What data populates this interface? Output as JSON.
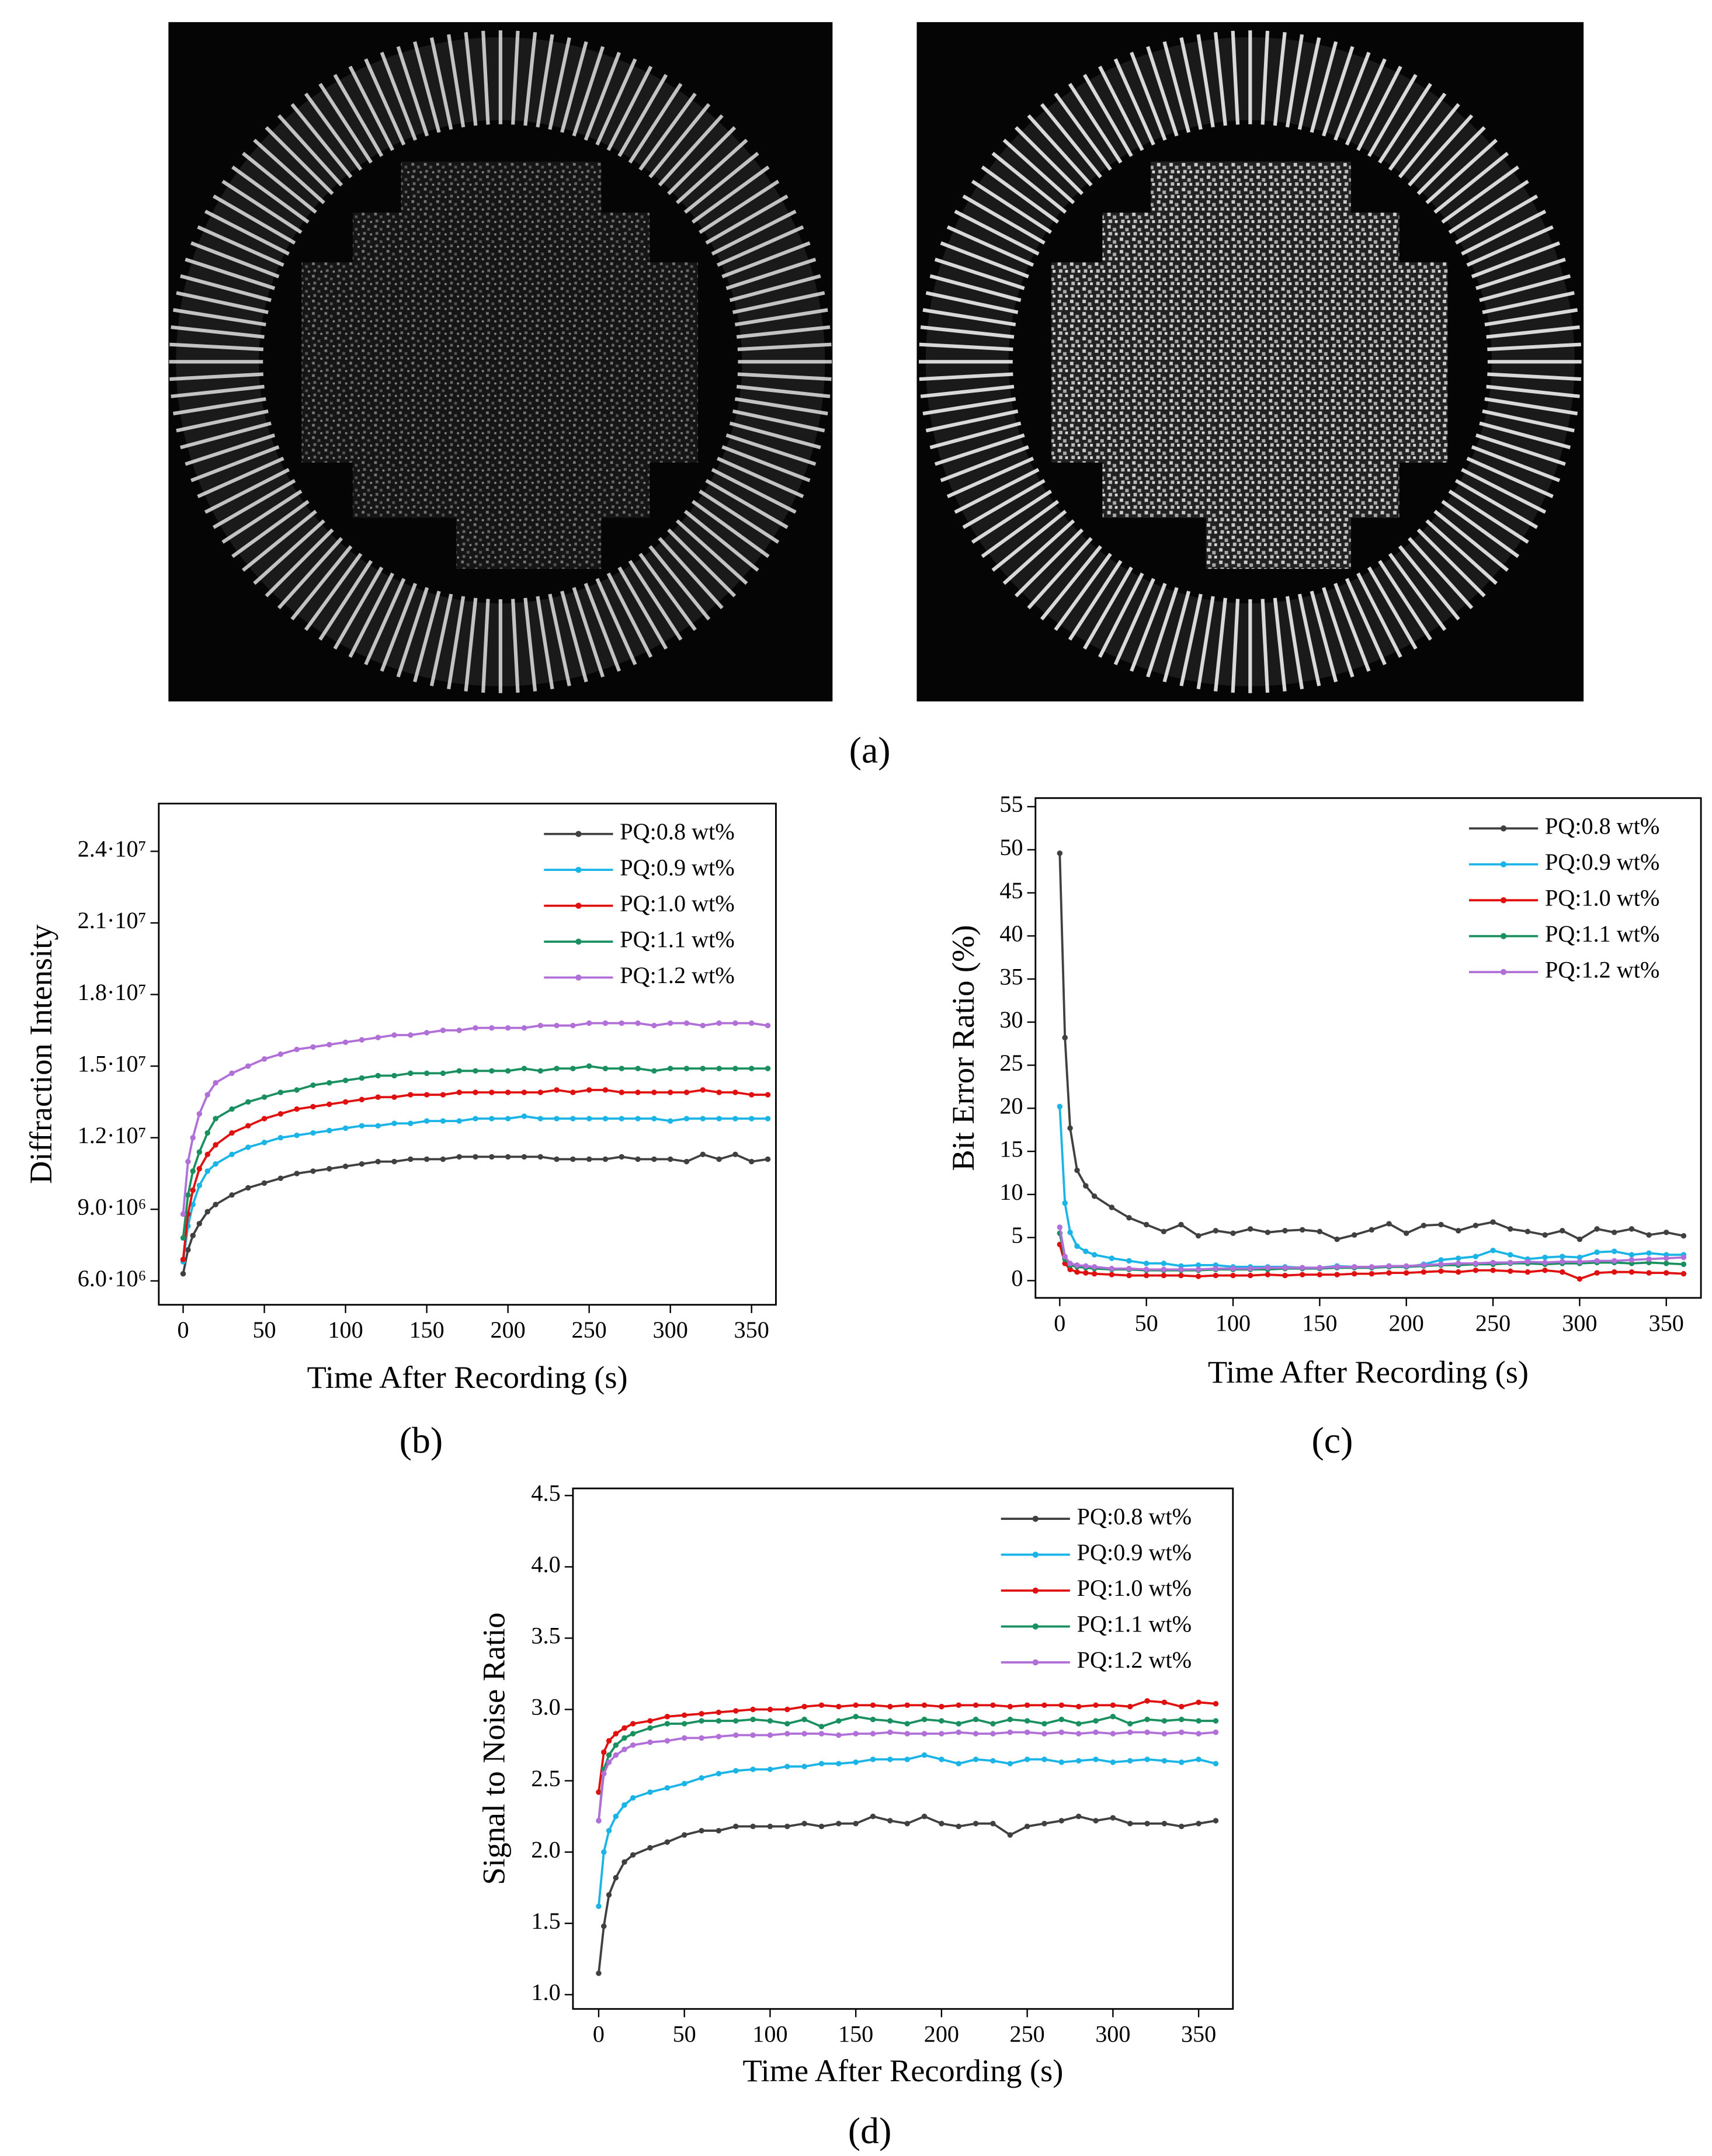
{
  "images": {
    "label": "(a)"
  },
  "chart_data": [
    {
      "type": "line",
      "label": "(b)",
      "x_label": "Time After Recording (s)",
      "y_label": "Diffraction Intensity",
      "x": [
        0,
        3,
        6,
        10,
        15,
        20,
        30,
        40,
        50,
        60,
        70,
        80,
        90,
        100,
        110,
        120,
        130,
        140,
        150,
        160,
        170,
        180,
        190,
        200,
        210,
        220,
        230,
        240,
        250,
        260,
        270,
        280,
        290,
        300,
        310,
        320,
        330,
        340,
        350,
        360
      ],
      "xlim": [
        -15,
        365
      ],
      "xticks": [
        0,
        50,
        100,
        150,
        200,
        250,
        300,
        350
      ],
      "ylim": [
        5000000,
        26000000
      ],
      "yticks": [
        {
          "value": 6000000,
          "label": "6.0·10⁶"
        },
        {
          "value": 9000000,
          "label": "9.0·10⁶"
        },
        {
          "value": 12000000,
          "label": "1.2·10⁷"
        },
        {
          "value": 15000000,
          "label": "1.5·10⁷"
        },
        {
          "value": 18000000,
          "label": "1.8·10⁷"
        },
        {
          "value": 21000000,
          "label": "2.1·10⁷"
        },
        {
          "value": 24000000,
          "label": "2.4·10⁷"
        }
      ],
      "legend": "upper right",
      "grid": false,
      "series": [
        {
          "name": "PQ:0.8 wt%",
          "color": "#404040",
          "values": [
            6300000,
            7300000,
            7900000,
            8400000,
            8900000,
            9200000,
            9600000,
            9900000,
            10100000,
            10300000,
            10500000,
            10600000,
            10700000,
            10800000,
            10900000,
            11000000,
            11000000,
            11100000,
            11100000,
            11100000,
            11200000,
            11200000,
            11200000,
            11200000,
            11200000,
            11200000,
            11100000,
            11100000,
            11100000,
            11100000,
            11200000,
            11100000,
            11100000,
            11100000,
            11000000,
            11300000,
            11100000,
            11300000,
            11000000,
            11100000
          ]
        },
        {
          "name": "PQ:0.9 wt%",
          "color": "#1ab4e6",
          "values": [
            6800000,
            8300000,
            9200000,
            10000000,
            10600000,
            10900000,
            11300000,
            11600000,
            11800000,
            12000000,
            12100000,
            12200000,
            12300000,
            12400000,
            12500000,
            12500000,
            12600000,
            12600000,
            12700000,
            12700000,
            12700000,
            12800000,
            12800000,
            12800000,
            12900000,
            12800000,
            12800000,
            12800000,
            12800000,
            12800000,
            12800000,
            12800000,
            12800000,
            12700000,
            12800000,
            12800000,
            12800000,
            12800000,
            12800000,
            12800000
          ]
        },
        {
          "name": "PQ:1.0 wt%",
          "color": "#e01010",
          "values": [
            6900000,
            8800000,
            9800000,
            10700000,
            11300000,
            11700000,
            12200000,
            12500000,
            12800000,
            13000000,
            13200000,
            13300000,
            13400000,
            13500000,
            13600000,
            13700000,
            13700000,
            13800000,
            13800000,
            13800000,
            13900000,
            13900000,
            13900000,
            13900000,
            13900000,
            13900000,
            14000000,
            13900000,
            14000000,
            14000000,
            13900000,
            13900000,
            13900000,
            13900000,
            13900000,
            14000000,
            13900000,
            13900000,
            13800000,
            13800000
          ]
        },
        {
          "name": "PQ:1.1 wt%",
          "color": "#1a9060",
          "values": [
            7800000,
            9600000,
            10600000,
            11400000,
            12200000,
            12800000,
            13200000,
            13500000,
            13700000,
            13900000,
            14000000,
            14200000,
            14300000,
            14400000,
            14500000,
            14600000,
            14600000,
            14700000,
            14700000,
            14700000,
            14800000,
            14800000,
            14800000,
            14800000,
            14900000,
            14800000,
            14900000,
            14900000,
            15000000,
            14900000,
            14900000,
            14900000,
            14800000,
            14900000,
            14900000,
            14900000,
            14900000,
            14900000,
            14900000,
            14900000
          ]
        },
        {
          "name": "PQ:1.2 wt%",
          "color": "#b070d8",
          "values": [
            8800000,
            11000000,
            12000000,
            13000000,
            13800000,
            14300000,
            14700000,
            15000000,
            15300000,
            15500000,
            15700000,
            15800000,
            15900000,
            16000000,
            16100000,
            16200000,
            16300000,
            16300000,
            16400000,
            16500000,
            16500000,
            16600000,
            16600000,
            16600000,
            16600000,
            16700000,
            16700000,
            16700000,
            16800000,
            16800000,
            16800000,
            16800000,
            16700000,
            16800000,
            16800000,
            16700000,
            16800000,
            16800000,
            16800000,
            16700000
          ]
        }
      ]
    },
    {
      "type": "line",
      "label": "(c)",
      "x_label": "Time After Recording (s)",
      "y_label": "Bit Error Ratio (%)",
      "x": [
        0,
        3,
        6,
        10,
        15,
        20,
        30,
        40,
        50,
        60,
        70,
        80,
        90,
        100,
        110,
        120,
        130,
        140,
        150,
        160,
        170,
        180,
        190,
        200,
        210,
        220,
        230,
        240,
        250,
        260,
        270,
        280,
        290,
        300,
        310,
        320,
        330,
        340,
        350,
        360
      ],
      "xlim": [
        -14,
        370
      ],
      "xticks": [
        0,
        50,
        100,
        150,
        200,
        250,
        300,
        350
      ],
      "ylim": [
        -2,
        56
      ],
      "yticks": [
        0,
        5,
        10,
        15,
        20,
        25,
        30,
        35,
        40,
        45,
        50,
        55
      ],
      "legend": "upper right",
      "grid": false,
      "series": [
        {
          "name": "PQ:0.8 wt%",
          "color": "#404040",
          "values": [
            49.6,
            28.2,
            17.7,
            12.8,
            11,
            9.8,
            8.5,
            7.3,
            6.5,
            5.7,
            6.5,
            5.2,
            5.8,
            5.5,
            6,
            5.6,
            5.8,
            5.9,
            5.7,
            4.8,
            5.3,
            5.9,
            6.6,
            5.5,
            6.4,
            6.5,
            5.8,
            6.4,
            6.8,
            6,
            5.7,
            5.3,
            5.8,
            4.8,
            6,
            5.6,
            6,
            5.3,
            5.6,
            5.2
          ]
        },
        {
          "name": "PQ:0.9 wt%",
          "color": "#1ab4e6",
          "values": [
            20.2,
            9,
            5.6,
            4,
            3.4,
            3,
            2.6,
            2.3,
            2,
            2,
            1.7,
            1.8,
            1.8,
            1.6,
            1.6,
            1.6,
            1.6,
            1.5,
            1.5,
            1.7,
            1.6,
            1.5,
            1.7,
            1.6,
            1.9,
            2.4,
            2.6,
            2.8,
            3.5,
            3,
            2.5,
            2.7,
            2.8,
            2.7,
            3.3,
            3.4,
            3,
            3.2,
            3,
            3
          ]
        },
        {
          "name": "PQ:1.0 wt%",
          "color": "#e01010",
          "values": [
            4.2,
            2,
            1.3,
            1,
            0.9,
            0.8,
            0.7,
            0.6,
            0.6,
            0.6,
            0.6,
            0.5,
            0.6,
            0.6,
            0.6,
            0.7,
            0.6,
            0.7,
            0.7,
            0.7,
            0.8,
            0.8,
            0.9,
            0.9,
            1,
            1.1,
            1,
            1.2,
            1.2,
            1.1,
            1,
            1.2,
            1,
            0.2,
            0.9,
            1,
            1,
            0.9,
            0.9,
            0.8
          ]
        },
        {
          "name": "PQ:1.1 wt%",
          "color": "#1a9060",
          "values": [
            5.5,
            2.5,
            1.8,
            1.6,
            1.5,
            1.4,
            1.3,
            1.3,
            1.2,
            1.2,
            1.2,
            1.2,
            1.3,
            1.3,
            1.3,
            1.3,
            1.4,
            1.4,
            1.4,
            1.5,
            1.5,
            1.5,
            1.6,
            1.6,
            1.7,
            1.8,
            1.8,
            1.9,
            1.9,
            2,
            2,
            1.9,
            2,
            2,
            2.1,
            2.1,
            2,
            2.1,
            2,
            1.9
          ]
        },
        {
          "name": "PQ:1.2 wt%",
          "color": "#b070d8",
          "values": [
            6.2,
            2.8,
            2,
            1.8,
            1.7,
            1.6,
            1.4,
            1.4,
            1.3,
            1.3,
            1.3,
            1.3,
            1.4,
            1.4,
            1.4,
            1.5,
            1.5,
            1.5,
            1.5,
            1.6,
            1.6,
            1.6,
            1.7,
            1.7,
            1.8,
            1.9,
            2,
            2,
            2.1,
            2.1,
            2.2,
            2.1,
            2.2,
            2.2,
            2.3,
            2.3,
            2.4,
            2.5,
            2.6,
            2.7
          ]
        }
      ]
    },
    {
      "type": "line",
      "label": "(d)",
      "x_label": "Time After Recording (s)",
      "y_label": "Signal to Noise Ratio",
      "x": [
        0,
        3,
        6,
        10,
        15,
        20,
        30,
        40,
        50,
        60,
        70,
        80,
        90,
        100,
        110,
        120,
        130,
        140,
        150,
        160,
        170,
        180,
        190,
        200,
        210,
        220,
        230,
        240,
        250,
        260,
        270,
        280,
        290,
        300,
        310,
        320,
        330,
        340,
        350,
        360
      ],
      "xlim": [
        -15,
        370
      ],
      "xticks": [
        0,
        50,
        100,
        150,
        200,
        250,
        300,
        350
      ],
      "ylim": [
        0.9,
        4.55
      ],
      "yticks": [
        {
          "value": 1,
          "label": "1.0"
        },
        1.5,
        {
          "value": 2,
          "label": "2.0"
        },
        2.5,
        {
          "value": 3,
          "label": "3.0"
        },
        3.5,
        {
          "value": 4,
          "label": "4.0"
        },
        4.5
      ],
      "legend": "upper right",
      "grid": false,
      "series": [
        {
          "name": "PQ:0.8 wt%",
          "color": "#404040",
          "values": [
            1.15,
            1.48,
            1.7,
            1.82,
            1.93,
            1.98,
            2.03,
            2.07,
            2.12,
            2.15,
            2.15,
            2.18,
            2.18,
            2.18,
            2.18,
            2.2,
            2.18,
            2.2,
            2.2,
            2.25,
            2.22,
            2.2,
            2.25,
            2.2,
            2.18,
            2.2,
            2.2,
            2.12,
            2.18,
            2.2,
            2.22,
            2.25,
            2.22,
            2.24,
            2.2,
            2.2,
            2.2,
            2.18,
            2.2,
            2.22
          ]
        },
        {
          "name": "PQ:0.9 wt%",
          "color": "#1ab4e6",
          "values": [
            1.62,
            2,
            2.15,
            2.25,
            2.33,
            2.38,
            2.42,
            2.45,
            2.48,
            2.52,
            2.55,
            2.57,
            2.58,
            2.58,
            2.6,
            2.6,
            2.62,
            2.62,
            2.63,
            2.65,
            2.65,
            2.65,
            2.68,
            2.65,
            2.62,
            2.65,
            2.64,
            2.62,
            2.65,
            2.65,
            2.63,
            2.64,
            2.65,
            2.63,
            2.64,
            2.65,
            2.64,
            2.63,
            2.65,
            2.62
          ]
        },
        {
          "name": "PQ:1.0 wt%",
          "color": "#e01010",
          "values": [
            2.42,
            2.7,
            2.78,
            2.83,
            2.87,
            2.9,
            2.92,
            2.95,
            2.96,
            2.97,
            2.98,
            2.99,
            3,
            3,
            3,
            3.02,
            3.03,
            3.02,
            3.03,
            3.03,
            3.02,
            3.03,
            3.03,
            3.02,
            3.03,
            3.03,
            3.03,
            3.02,
            3.03,
            3.03,
            3.03,
            3.02,
            3.03,
            3.03,
            3.02,
            3.06,
            3.05,
            3.02,
            3.05,
            3.04
          ]
        },
        {
          "name": "PQ:1.1 wt%",
          "color": "#1a9060",
          "values": [
            2.22,
            2.58,
            2.68,
            2.75,
            2.8,
            2.83,
            2.87,
            2.9,
            2.9,
            2.92,
            2.92,
            2.92,
            2.93,
            2.92,
            2.9,
            2.93,
            2.88,
            2.92,
            2.95,
            2.93,
            2.92,
            2.9,
            2.93,
            2.92,
            2.9,
            2.93,
            2.9,
            2.93,
            2.92,
            2.9,
            2.93,
            2.9,
            2.92,
            2.95,
            2.9,
            2.93,
            2.92,
            2.93,
            2.92,
            2.92
          ]
        },
        {
          "name": "PQ:1.2 wt%",
          "color": "#b070d8",
          "values": [
            2.22,
            2.55,
            2.63,
            2.68,
            2.72,
            2.75,
            2.77,
            2.78,
            2.8,
            2.8,
            2.81,
            2.82,
            2.82,
            2.82,
            2.83,
            2.83,
            2.83,
            2.82,
            2.83,
            2.83,
            2.84,
            2.83,
            2.83,
            2.83,
            2.84,
            2.83,
            2.83,
            2.84,
            2.84,
            2.83,
            2.84,
            2.83,
            2.84,
            2.83,
            2.84,
            2.84,
            2.83,
            2.84,
            2.83,
            2.84
          ]
        }
      ]
    }
  ]
}
